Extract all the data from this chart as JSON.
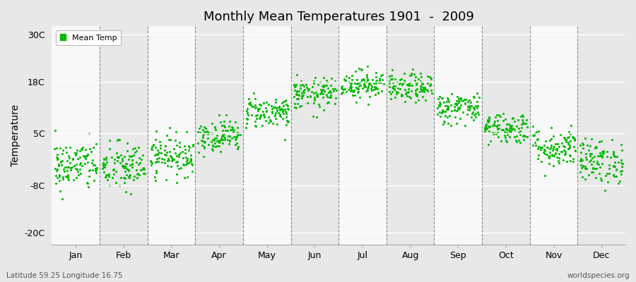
{
  "title": "Monthly Mean Temperatures 1901  -  2009",
  "ylabel": "Temperature",
  "subtitle_left": "Latitude 59.25 Longitude 16.75",
  "subtitle_right": "worldspecies.org",
  "legend_label": "Mean Temp",
  "dot_color": "#00bb00",
  "bg_color": "#e8e8e8",
  "band_odd": "#e8e8e8",
  "band_even": "#f8f8f8",
  "years": 109,
  "months": [
    "Jan",
    "Feb",
    "Mar",
    "Apr",
    "May",
    "Jun",
    "Jul",
    "Aug",
    "Sep",
    "Oct",
    "Nov",
    "Dec"
  ],
  "mean_temps": [
    -3.0,
    -3.5,
    -0.5,
    4.5,
    10.5,
    15.0,
    17.5,
    16.5,
    11.5,
    6.5,
    1.5,
    -2.0
  ],
  "std_temps": [
    3.2,
    3.2,
    2.5,
    2.0,
    2.0,
    2.0,
    1.8,
    1.8,
    2.0,
    2.0,
    2.5,
    2.8
  ],
  "yticks": [
    -20,
    -8,
    5,
    18,
    30
  ],
  "ylim": [
    -23,
    32
  ],
  "xlim": [
    -0.5,
    11.5
  ]
}
